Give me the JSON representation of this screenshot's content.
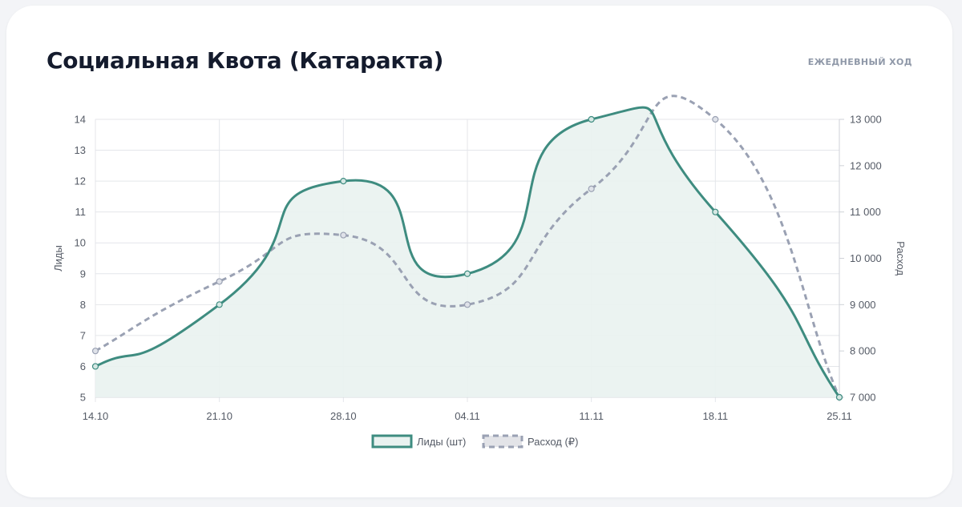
{
  "header": {
    "title": "Социальная Квота (Катаракта)",
    "subtitle": "Ежедневный ход"
  },
  "colors": {
    "leads": "#3e8c80",
    "leads_fill": "#e9f2f0",
    "spend": "#9aa1b3",
    "grid": "#e4e6ea",
    "axis_text": "#555b66"
  },
  "chart_data": {
    "type": "line",
    "x": [
      "14.10",
      "21.10",
      "28.10",
      "04.11",
      "11.11",
      "18.11",
      "25.11"
    ],
    "series": [
      {
        "name": "Лиды (шт)",
        "axis": "left",
        "values": [
          6,
          8,
          12,
          9,
          14,
          11,
          5
        ],
        "style": "solid",
        "fill": true
      },
      {
        "name": "Расход (₽)",
        "axis": "right",
        "values": [
          8000,
          9500,
          10500,
          9000,
          11500,
          13000,
          7000
        ],
        "style": "dashed",
        "fill": false
      }
    ],
    "y_left": {
      "label": "Лиды",
      "range": [
        5,
        14
      ],
      "ticks": [
        "5",
        "6",
        "7",
        "8",
        "9",
        "10",
        "11",
        "12",
        "13",
        "14"
      ]
    },
    "y_right": {
      "label": "Расход",
      "range": [
        7000,
        13000
      ],
      "ticks": [
        "7 000",
        "8 000",
        "9 000",
        "10 000",
        "11 000",
        "12 000",
        "13 000"
      ]
    },
    "grid": true,
    "legend": "bottom"
  }
}
